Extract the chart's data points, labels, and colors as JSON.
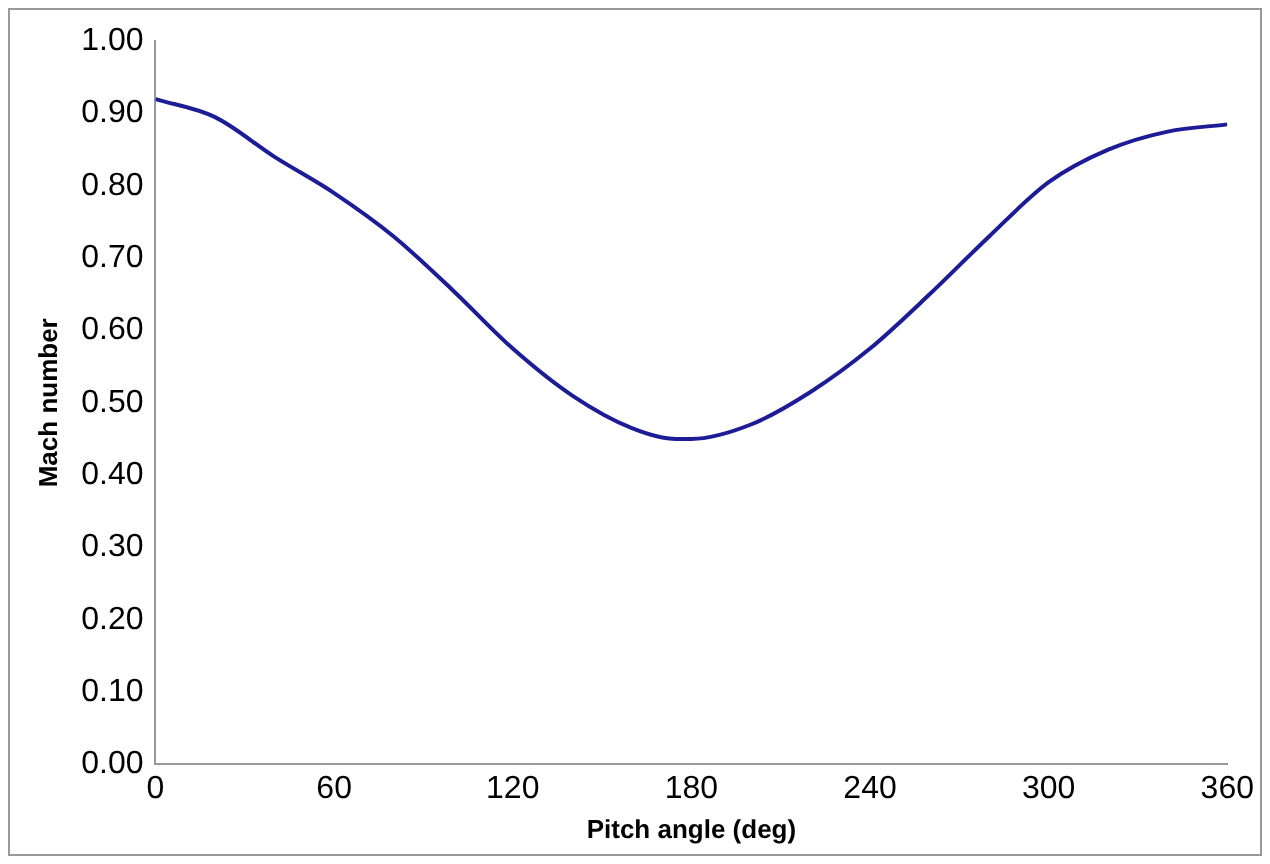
{
  "chart_data": {
    "type": "line",
    "xlabel": "Pitch angle (deg)",
    "ylabel": "Mach number",
    "x": [
      0,
      20,
      40,
      60,
      80,
      100,
      120,
      140,
      160,
      175,
      180,
      200,
      220,
      240,
      260,
      280,
      300,
      320,
      340,
      360
    ],
    "series": [
      {
        "color": "#1c1c96",
        "values": [
          0.92,
          0.895,
          0.84,
          0.79,
          0.73,
          0.655,
          0.575,
          0.51,
          0.465,
          0.45,
          0.45,
          0.47,
          0.515,
          0.575,
          0.65,
          0.73,
          0.805,
          0.85,
          0.875,
          0.885
        ]
      }
    ],
    "xlim": [
      0,
      360
    ],
    "xticks": [
      0,
      60,
      120,
      180,
      240,
      300,
      360
    ],
    "ylim": [
      0,
      1
    ],
    "yticks": [
      {
        "value": 0,
        "label": "0.00"
      },
      {
        "value": 0.1,
        "label": "0.10"
      },
      {
        "value": 0.2,
        "label": "0.20"
      },
      {
        "value": 0.3,
        "label": "0.30"
      },
      {
        "value": 0.4,
        "label": "0.40"
      },
      {
        "value": 0.5,
        "label": "0.50"
      },
      {
        "value": 0.6,
        "label": "0.60"
      },
      {
        "value": 0.7,
        "label": "0.70"
      },
      {
        "value": 0.8,
        "label": "0.80"
      },
      {
        "value": 0.9,
        "label": "0.90"
      },
      {
        "value": 1,
        "label": "1.00"
      }
    ],
    "grid": false,
    "legend": false,
    "marker": "none",
    "line_style": "solid"
  }
}
